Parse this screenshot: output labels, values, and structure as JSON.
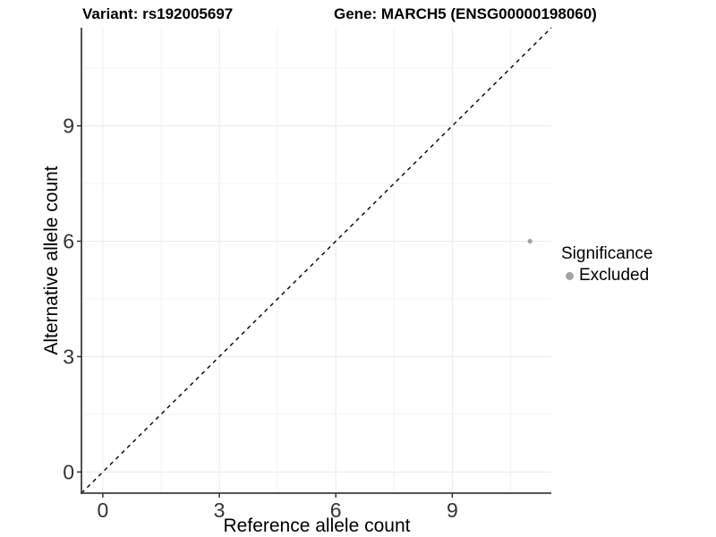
{
  "chart_data": {
    "type": "scatter",
    "title_left": "Variant: rs192005697",
    "title_right": "Gene: MARCH5 (ENSG00000198060)",
    "xlabel": "Reference allele count",
    "ylabel": "Alternative allele count",
    "xlim": [
      -0.55,
      11.55
    ],
    "ylim": [
      -0.55,
      11.55
    ],
    "xticks": [
      0,
      3,
      6,
      9
    ],
    "yticks": [
      0,
      3,
      6,
      9
    ],
    "xticks_minor": [
      1.5,
      4.5,
      7.5,
      10.5
    ],
    "yticks_minor": [
      1.5,
      4.5,
      7.5,
      10.5
    ],
    "grid": "major-and-minor",
    "identity_line": {
      "label": "y = x",
      "style": "dashed",
      "color": "#000000"
    },
    "series": [
      {
        "name": "Excluded",
        "color": "#a3a3a3",
        "points": [
          {
            "x": 11,
            "y": 6
          }
        ]
      }
    ],
    "legend": {
      "title": "Significance",
      "position": "right",
      "items": [
        {
          "label": "Excluded",
          "color": "#a3a3a3"
        }
      ]
    },
    "colors": {
      "background": "#ffffff",
      "grid_major": "#eaeaea",
      "grid_minor": "#f4f4f4",
      "axis_line": "#3d3d3d",
      "tick_mark": "#333333",
      "tick_text": "#333333",
      "point": "#a3a3a3"
    }
  }
}
